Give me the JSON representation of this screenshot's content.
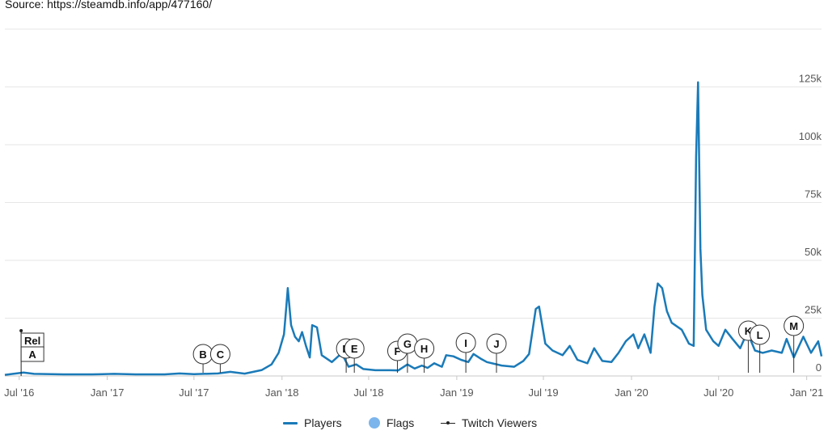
{
  "source_text": "Source: https://steamdb.info/app/477160/",
  "colors": {
    "players": "#1a7ab8",
    "flags": "#7cb5ec",
    "twitch": "#222222",
    "grid": "#e6e6e6"
  },
  "chart_data": {
    "type": "line",
    "x_axis": {
      "type": "date",
      "range": [
        "2016-06-01",
        "2021-02-01"
      ],
      "ticks": [
        {
          "date": "2016-07-01",
          "label": "Jul '16"
        },
        {
          "date": "2017-01-01",
          "label": "Jan '17"
        },
        {
          "date": "2017-07-01",
          "label": "Jul '17"
        },
        {
          "date": "2018-01-01",
          "label": "Jan '18"
        },
        {
          "date": "2018-07-01",
          "label": "Jul '18"
        },
        {
          "date": "2019-01-01",
          "label": "Jan '19"
        },
        {
          "date": "2019-07-01",
          "label": "Jul '19"
        },
        {
          "date": "2020-01-01",
          "label": "Jan '20"
        },
        {
          "date": "2020-07-01",
          "label": "Jul '20"
        },
        {
          "date": "2021-01-01",
          "label": "Jan '21"
        }
      ]
    },
    "y_axis": {
      "range": [
        0,
        150000
      ],
      "position": "right",
      "grid": true,
      "ticks": [
        {
          "value": 0,
          "label": "0"
        },
        {
          "value": 25000,
          "label": "25k"
        },
        {
          "value": 50000,
          "label": "50k"
        },
        {
          "value": 75000,
          "label": "75k"
        },
        {
          "value": 100000,
          "label": "100k"
        },
        {
          "value": 125000,
          "label": "125k"
        }
      ]
    },
    "series": [
      {
        "name": "Players",
        "points": [
          [
            "2016-06-01",
            500
          ],
          [
            "2016-07-10",
            1500
          ],
          [
            "2016-08-01",
            900
          ],
          [
            "2016-10-01",
            700
          ],
          [
            "2016-12-01",
            700
          ],
          [
            "2017-01-15",
            900
          ],
          [
            "2017-03-01",
            700
          ],
          [
            "2017-05-01",
            700
          ],
          [
            "2017-06-01",
            1100
          ],
          [
            "2017-07-01",
            800
          ],
          [
            "2017-08-20",
            1100
          ],
          [
            "2017-09-15",
            1800
          ],
          [
            "2017-10-15",
            1000
          ],
          [
            "2017-11-20",
            2600
          ],
          [
            "2017-12-10",
            5000
          ],
          [
            "2017-12-25",
            10000
          ],
          [
            "2018-01-05",
            18000
          ],
          [
            "2018-01-10",
            30000
          ],
          [
            "2018-01-13",
            38000
          ],
          [
            "2018-01-20",
            22000
          ],
          [
            "2018-01-28",
            17000
          ],
          [
            "2018-02-05",
            15000
          ],
          [
            "2018-02-12",
            19000
          ],
          [
            "2018-02-20",
            13000
          ],
          [
            "2018-02-28",
            8000
          ],
          [
            "2018-03-05",
            22000
          ],
          [
            "2018-03-15",
            21000
          ],
          [
            "2018-03-25",
            9000
          ],
          [
            "2018-04-15",
            6000
          ],
          [
            "2018-05-01",
            9000
          ],
          [
            "2018-05-10",
            8000
          ],
          [
            "2018-05-20",
            4000
          ],
          [
            "2018-06-05",
            5000
          ],
          [
            "2018-06-20",
            3000
          ],
          [
            "2018-07-15",
            2500
          ],
          [
            "2018-08-15",
            2500
          ],
          [
            "2018-09-01",
            2400
          ],
          [
            "2018-09-20",
            5000
          ],
          [
            "2018-10-05",
            3200
          ],
          [
            "2018-10-20",
            4500
          ],
          [
            "2018-11-01",
            3500
          ],
          [
            "2018-11-15",
            5500
          ],
          [
            "2018-12-01",
            4000
          ],
          [
            "2018-12-10",
            9000
          ],
          [
            "2018-12-25",
            8500
          ],
          [
            "2019-01-10",
            7000
          ],
          [
            "2019-01-25",
            6000
          ],
          [
            "2019-02-05",
            9500
          ],
          [
            "2019-02-20",
            7500
          ],
          [
            "2019-03-05",
            6000
          ],
          [
            "2019-04-05",
            4500
          ],
          [
            "2019-05-01",
            4000
          ],
          [
            "2019-05-20",
            6500
          ],
          [
            "2019-06-01",
            9500
          ],
          [
            "2019-06-15",
            29000
          ],
          [
            "2019-06-22",
            30000
          ],
          [
            "2019-07-05",
            14000
          ],
          [
            "2019-07-20",
            11000
          ],
          [
            "2019-08-10",
            9000
          ],
          [
            "2019-08-25",
            13000
          ],
          [
            "2019-09-10",
            7000
          ],
          [
            "2019-10-01",
            5500
          ],
          [
            "2019-10-15",
            12000
          ],
          [
            "2019-11-01",
            6500
          ],
          [
            "2019-11-20",
            6000
          ],
          [
            "2019-12-05",
            10000
          ],
          [
            "2019-12-20",
            15000
          ],
          [
            "2020-01-05",
            18000
          ],
          [
            "2020-01-15",
            12000
          ],
          [
            "2020-01-28",
            18000
          ],
          [
            "2020-02-10",
            10000
          ],
          [
            "2020-02-18",
            30000
          ],
          [
            "2020-02-25",
            40000
          ],
          [
            "2020-03-05",
            38000
          ],
          [
            "2020-03-15",
            28000
          ],
          [
            "2020-03-25",
            23000
          ],
          [
            "2020-04-15",
            20000
          ],
          [
            "2020-04-30",
            14000
          ],
          [
            "2020-05-10",
            13000
          ],
          [
            "2020-05-15",
            95000
          ],
          [
            "2020-05-19",
            127000
          ],
          [
            "2020-05-24",
            55000
          ],
          [
            "2020-05-28",
            35000
          ],
          [
            "2020-06-05",
            20000
          ],
          [
            "2020-06-20",
            15000
          ],
          [
            "2020-07-01",
            13000
          ],
          [
            "2020-07-15",
            20000
          ],
          [
            "2020-07-30",
            16000
          ],
          [
            "2020-08-15",
            12000
          ],
          [
            "2020-08-30",
            19000
          ],
          [
            "2020-09-15",
            11000
          ],
          [
            "2020-10-01",
            10000
          ],
          [
            "2020-10-20",
            11000
          ],
          [
            "2020-11-10",
            10000
          ],
          [
            "2020-11-20",
            16000
          ],
          [
            "2020-12-05",
            8000
          ],
          [
            "2020-12-25",
            17000
          ],
          [
            "2021-01-10",
            10000
          ],
          [
            "2021-01-25",
            15000
          ],
          [
            "2021-02-01",
            8500
          ]
        ]
      }
    ],
    "flags": [
      {
        "label": "Rel",
        "type": "release",
        "date": "2016-07-05"
      },
      {
        "label": "A",
        "type": "release",
        "date": "2016-07-05"
      },
      {
        "label": "B",
        "date": "2017-07-20"
      },
      {
        "label": "C",
        "date": "2017-08-25"
      },
      {
        "label": "D",
        "date": "2018-05-15"
      },
      {
        "label": "E",
        "date": "2018-06-01"
      },
      {
        "label": "F",
        "date": "2018-08-30"
      },
      {
        "label": "G",
        "date": "2018-09-20"
      },
      {
        "label": "H",
        "date": "2018-10-25"
      },
      {
        "label": "I",
        "date": "2019-01-20"
      },
      {
        "label": "J",
        "date": "2019-03-25"
      },
      {
        "label": "K",
        "date": "2020-09-01"
      },
      {
        "label": "L",
        "date": "2020-09-25"
      },
      {
        "label": "M",
        "date": "2020-12-05"
      }
    ],
    "legend": {
      "placement": "bottom-center",
      "items": [
        {
          "name": "Players",
          "symbol": "line"
        },
        {
          "name": "Flags",
          "symbol": "dot"
        },
        {
          "name": "Twitch Viewers",
          "symbol": "line-marker"
        }
      ]
    }
  }
}
